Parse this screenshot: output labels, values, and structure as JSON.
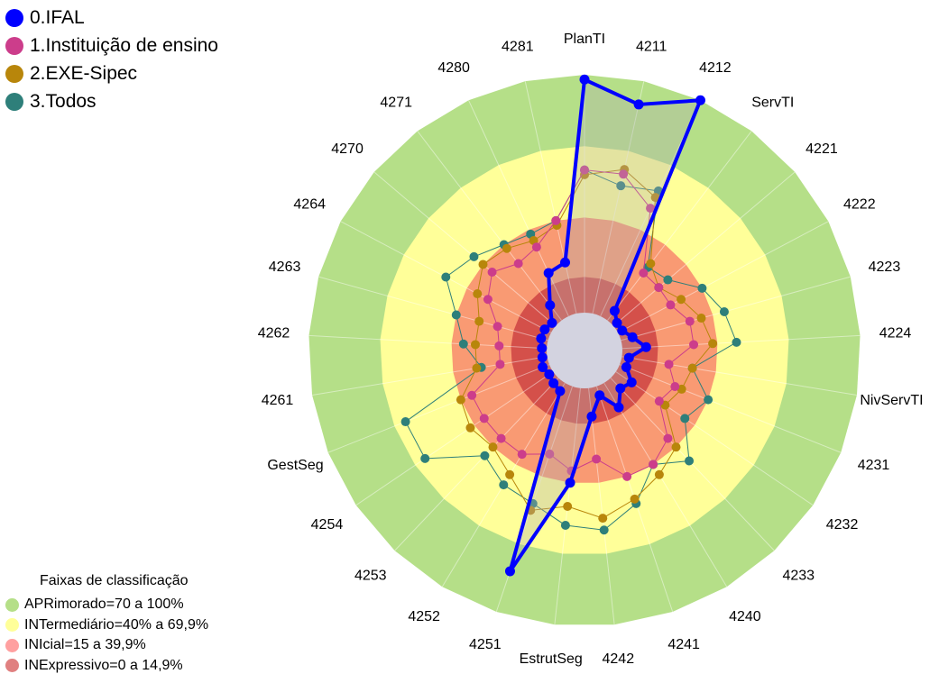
{
  "chart_data": {
    "type": "radar",
    "axes": [
      "PlanTI",
      "4211",
      "4212",
      "ServTI",
      "4221",
      "4222",
      "4223",
      "4224",
      "NivServTI",
      "4231",
      "4232",
      "4233",
      "4240",
      "4241",
      "4242",
      "EstrutSeg",
      "4251",
      "4252",
      "4253",
      "4254",
      "GestSeg",
      "4261",
      "4262",
      "4263",
      "4264",
      "4270",
      "4271",
      "4280",
      "4281"
    ],
    "rlim": [
      0,
      100
    ],
    "series": [
      {
        "name": "0.IFAL",
        "color": "#0000ff",
        "values": [
          98,
          90,
          100,
          5,
          2,
          2,
          5,
          10,
          3,
          3,
          8,
          6,
          12,
          4,
          12,
          40,
          82,
          4,
          3,
          2,
          3,
          2,
          2,
          3,
          3,
          2,
          8,
          20,
          22
        ]
      },
      {
        "name": "1.Instituição de ensino",
        "color": "#cc3d8b",
        "values": [
          60,
          60,
          50,
          25,
          25,
          25,
          30,
          30,
          20,
          25,
          22,
          35,
          40,
          40,
          30,
          35,
          30,
          35,
          35,
          35,
          35,
          20,
          20,
          22,
          30,
          35,
          30,
          32,
          40
        ]
      },
      {
        "name": "2.EXE-Sipec",
        "color": "#b8860b",
        "values": [
          58,
          62,
          55,
          30,
          25,
          30,
          35,
          38,
          30,
          28,
          25,
          40,
          45,
          50,
          55,
          50,
          55,
          45,
          40,
          42,
          40,
          30,
          30,
          30,
          35,
          40,
          38,
          35,
          38
        ]
      },
      {
        "name": "3.Todos",
        "color": "#2e7f7a",
        "values": [
          60,
          55,
          58,
          28,
          30,
          40,
          45,
          48,
          30,
          40,
          35,
          48,
          40,
          52,
          60,
          58,
          52,
          50,
          45,
          65,
          65,
          28,
          35,
          40,
          50,
          45,
          40,
          38,
          40
        ]
      }
    ],
    "bands": [
      {
        "label": "APRimorado=70 a 100%",
        "from": 70,
        "to": 100,
        "color": "#b5df88"
      },
      {
        "label": "INTermediário=40% a 69,9%",
        "from": 40,
        "to": 70,
        "color": "#ffff99"
      },
      {
        "label": "INIcial=15 a 39,9%",
        "from": 15,
        "to": 40,
        "color": "#f99a73"
      },
      {
        "label": "INExpressivo=0 a 14,9%",
        "from": 0,
        "to": 15,
        "color": "#d4504a"
      }
    ],
    "bands_title": "Faixas de classificação",
    "legend_position": "top-left"
  }
}
